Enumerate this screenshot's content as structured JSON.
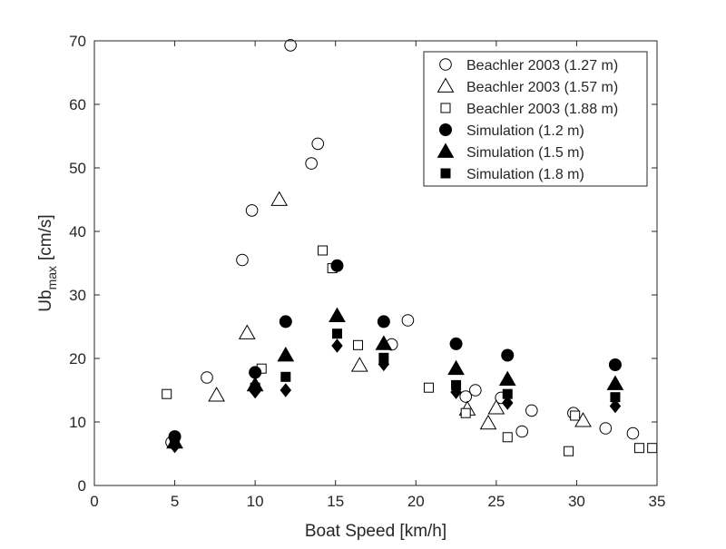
{
  "chart_data": {
    "type": "scatter",
    "xlabel": "Boat Speed [km/h]",
    "ylabel": {
      "main": "Ub",
      "sub": "max",
      "unit": "[cm/s]"
    },
    "xlim": [
      0,
      35
    ],
    "ylim": [
      0,
      70
    ],
    "xticks": [
      0,
      5,
      10,
      15,
      20,
      25,
      30,
      35
    ],
    "yticks": [
      0,
      10,
      20,
      30,
      40,
      50,
      60,
      70
    ],
    "grid": false,
    "legend_position": "top-right",
    "series": [
      {
        "name": "Beachler 2003 (1.27 m)",
        "marker": "circle-open",
        "points": [
          [
            4.8,
            6.8
          ],
          [
            7.0,
            17.0
          ],
          [
            9.2,
            35.5
          ],
          [
            9.8,
            43.3
          ],
          [
            12.2,
            69.3
          ],
          [
            13.5,
            50.7
          ],
          [
            13.9,
            53.8
          ],
          [
            18.5,
            22.2
          ],
          [
            19.5,
            26.0
          ],
          [
            23.1,
            14.0
          ],
          [
            23.7,
            15.0
          ],
          [
            25.3,
            13.8
          ],
          [
            26.6,
            8.5
          ],
          [
            27.2,
            11.8
          ],
          [
            29.8,
            11.4
          ],
          [
            31.8,
            9.0
          ],
          [
            33.5,
            8.2
          ]
        ]
      },
      {
        "name": "Beachler 2003 (1.57 m)",
        "marker": "triangle-open",
        "points": [
          [
            7.6,
            14.2
          ],
          [
            9.5,
            24.0
          ],
          [
            11.5,
            45.0
          ],
          [
            16.5,
            18.9
          ],
          [
            23.2,
            12.0
          ],
          [
            24.5,
            9.8
          ],
          [
            25.0,
            12.2
          ],
          [
            30.4,
            10.2
          ]
        ]
      },
      {
        "name": "Beachler 2003 (1.88 m)",
        "marker": "square-open",
        "points": [
          [
            4.5,
            14.4
          ],
          [
            10.4,
            18.4
          ],
          [
            14.2,
            37.0
          ],
          [
            14.8,
            34.2
          ],
          [
            16.4,
            22.1
          ],
          [
            20.8,
            15.4
          ],
          [
            23.1,
            11.4
          ],
          [
            25.7,
            7.6
          ],
          [
            29.5,
            5.4
          ],
          [
            29.9,
            11.0
          ],
          [
            33.9,
            5.9
          ],
          [
            34.7,
            5.9
          ]
        ]
      },
      {
        "name": "Simulation (1.2 m)",
        "marker": "circle-filled",
        "points": [
          [
            5.0,
            7.7
          ],
          [
            10.0,
            17.8
          ],
          [
            11.9,
            25.8
          ],
          [
            15.1,
            34.6
          ],
          [
            18.0,
            25.8
          ],
          [
            22.5,
            22.3
          ],
          [
            25.7,
            20.5
          ],
          [
            32.4,
            19.0
          ]
        ]
      },
      {
        "name": "Simulation (1.5 m)",
        "marker": "triangle-filled",
        "points": [
          [
            5.0,
            6.8
          ],
          [
            10.0,
            15.8
          ],
          [
            11.9,
            20.5
          ],
          [
            15.1,
            26.7
          ],
          [
            18.0,
            22.3
          ],
          [
            22.5,
            18.4
          ],
          [
            25.7,
            16.7
          ],
          [
            32.4,
            16.0
          ]
        ]
      },
      {
        "name": "Simulation (1.8 m)",
        "marker": "square-filled",
        "points": [
          [
            5.0,
            6.6
          ],
          [
            10.0,
            15.4
          ],
          [
            11.9,
            17.1
          ],
          [
            15.1,
            23.9
          ],
          [
            18.0,
            20.1
          ],
          [
            22.5,
            15.8
          ],
          [
            25.7,
            14.4
          ],
          [
            32.4,
            13.9
          ]
        ]
      },
      {
        "marker": "diamond-filled",
        "points": [
          [
            5.0,
            6.2
          ],
          [
            10.0,
            14.8
          ],
          [
            11.9,
            15.0
          ],
          [
            15.1,
            22.0
          ],
          [
            18.0,
            19.1
          ],
          [
            22.5,
            14.7
          ],
          [
            25.7,
            13.0
          ],
          [
            32.4,
            12.5
          ]
        ]
      }
    ]
  }
}
